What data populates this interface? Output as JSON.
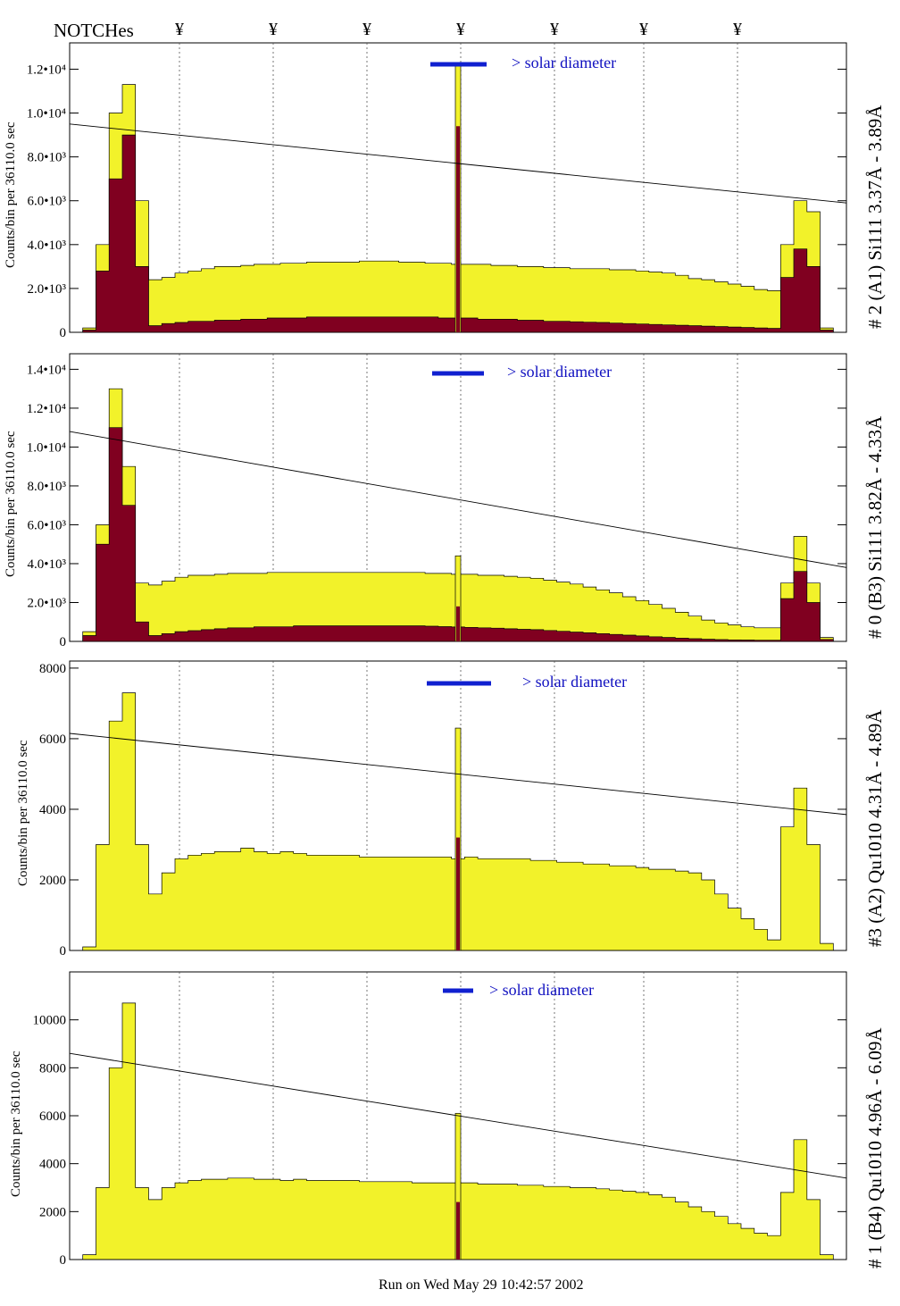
{
  "header": {
    "notches_label": "NOTCHes",
    "notch_symbol": "¥"
  },
  "footer": {
    "run_text": "Run on Wed May 29 10:42:57 2002"
  },
  "colors": {
    "fill_total": "#f2f22a",
    "fill_sub": "#800020",
    "marker": "#1020d0",
    "marker_text": "#1010c0"
  },
  "chart_data": [
    {
      "type": "area",
      "title": "",
      "ylabel": "Counts/bin per  36110.0 sec",
      "right_label": "# 2 (A1) Si111  3.37Å - 3.89Å",
      "solar_text": "> solar diameter",
      "ylim": [
        0,
        13200
      ],
      "yticks": [
        "0",
        "2.0•10³",
        "4.0•10³",
        "6.0•10³",
        "8.0•10³",
        "1.0•10⁴",
        "1.2•10⁴"
      ],
      "ytick_values": [
        0,
        2000,
        4000,
        6000,
        8000,
        10000,
        12000
      ],
      "trend": [
        9500,
        5900
      ],
      "series": [
        {
          "values": [
            0,
            200,
            4000,
            10000,
            11300,
            6000,
            2400,
            2500,
            2700,
            2800,
            2900,
            3000,
            3000,
            3050,
            3100,
            3100,
            3150,
            3150,
            3200,
            3200,
            3200,
            3200,
            3250,
            3250,
            3250,
            3200,
            3200,
            3150,
            3150,
            3100,
            3100,
            3100,
            3050,
            3050,
            3000,
            3000,
            2950,
            2950,
            2900,
            2900,
            2900,
            2850,
            2850,
            2800,
            2750,
            2700,
            2600,
            2450,
            2400,
            2300,
            2200,
            2100,
            1950,
            1900,
            4000,
            6000,
            5500,
            200,
            0
          ]
        },
        {
          "values": [
            0,
            100,
            2800,
            7000,
            9000,
            3000,
            300,
            400,
            450,
            500,
            500,
            550,
            550,
            600,
            600,
            650,
            650,
            650,
            700,
            700,
            700,
            700,
            700,
            700,
            700,
            700,
            700,
            700,
            650,
            650,
            650,
            600,
            600,
            600,
            550,
            550,
            500,
            500,
            480,
            460,
            450,
            420,
            400,
            380,
            360,
            340,
            320,
            300,
            280,
            260,
            240,
            220,
            200,
            180,
            2500,
            3800,
            3000,
            100,
            0
          ]
        }
      ],
      "spike": [
        12200,
        9400
      ]
    },
    {
      "type": "area",
      "title": "",
      "ylabel": "Counts/bin per  36110.0 sec",
      "right_label": "# 0 (B3) Si111  3.82Å - 4.33Å",
      "solar_text": "> solar diameter",
      "ylim": [
        0,
        14800
      ],
      "yticks": [
        "0",
        "2.0•10³",
        "4.0•10³",
        "6.0•10³",
        "8.0•10³",
        "1.0•10⁴",
        "1.2•10⁴",
        "1.4•10⁴"
      ],
      "ytick_values": [
        0,
        2000,
        4000,
        6000,
        8000,
        10000,
        12000,
        14000
      ],
      "trend": [
        10800,
        3800
      ],
      "series": [
        {
          "values": [
            0,
            500,
            6000,
            13000,
            9000,
            3000,
            2900,
            3100,
            3300,
            3400,
            3400,
            3450,
            3500,
            3500,
            3500,
            3550,
            3550,
            3550,
            3550,
            3550,
            3550,
            3550,
            3550,
            3550,
            3550,
            3550,
            3550,
            3500,
            3500,
            3450,
            3450,
            3400,
            3400,
            3350,
            3300,
            3250,
            3150,
            3050,
            2950,
            2800,
            2650,
            2500,
            2300,
            2100,
            1900,
            1700,
            1500,
            1300,
            1100,
            950,
            850,
            750,
            700,
            700,
            3000,
            5400,
            3000,
            200,
            0
          ]
        },
        {
          "values": [
            0,
            300,
            5000,
            11000,
            7000,
            1000,
            300,
            400,
            500,
            550,
            600,
            650,
            700,
            700,
            750,
            750,
            750,
            800,
            800,
            800,
            800,
            800,
            800,
            800,
            800,
            800,
            800,
            780,
            760,
            740,
            720,
            700,
            680,
            650,
            620,
            600,
            560,
            520,
            480,
            440,
            400,
            360,
            320,
            280,
            240,
            200,
            170,
            140,
            110,
            90,
            80,
            70,
            60,
            60,
            2200,
            3600,
            2000,
            100,
            0
          ]
        }
      ],
      "spike": [
        4400,
        1800
      ]
    },
    {
      "type": "area",
      "title": "",
      "ylabel": "Counts/bin per  36110.0 sec",
      "right_label": "#3 (A2) Qu1010  4.31Å - 4.89Å",
      "solar_text": "> solar diameter",
      "ylim": [
        0,
        8200
      ],
      "yticks": [
        "0",
        "2000",
        "4000",
        "6000",
        "8000"
      ],
      "ytick_values": [
        0,
        2000,
        4000,
        6000,
        8000
      ],
      "trend": [
        6150,
        3850
      ],
      "series": [
        {
          "values": [
            0,
            100,
            3000,
            6500,
            7300,
            3000,
            1600,
            2200,
            2600,
            2700,
            2750,
            2800,
            2800,
            2900,
            2800,
            2750,
            2800,
            2750,
            2700,
            2700,
            2700,
            2700,
            2650,
            2650,
            2650,
            2650,
            2650,
            2650,
            2650,
            2600,
            2650,
            2600,
            2600,
            2600,
            2600,
            2550,
            2550,
            2500,
            2500,
            2450,
            2450,
            2400,
            2400,
            2350,
            2300,
            2300,
            2250,
            2200,
            2000,
            1600,
            1200,
            900,
            600,
            300,
            3500,
            4600,
            3000,
            200,
            0
          ]
        },
        {
          "values": [
            0,
            0,
            0,
            0,
            0,
            0,
            0,
            0,
            0,
            0,
            0,
            0,
            0,
            0,
            0,
            0,
            0,
            0,
            0,
            0,
            0,
            0,
            0,
            0,
            0,
            0,
            0,
            0,
            0,
            0,
            0,
            0,
            0,
            0,
            0,
            0,
            0,
            0,
            0,
            0,
            0,
            0,
            0,
            0,
            0,
            0,
            0,
            0,
            0,
            0,
            0,
            0,
            0,
            0,
            0,
            0,
            0,
            0,
            0
          ]
        }
      ],
      "spike": [
        6300,
        3200
      ]
    },
    {
      "type": "area",
      "title": "",
      "ylabel": "Counts/bin per  36110.0 sec",
      "right_label": "# 1 (B4) Qu1010 4.96Å - 6.09Å",
      "solar_text": "> solar diameter",
      "ylim": [
        0,
        12000
      ],
      "yticks": [
        "0",
        "2000",
        "4000",
        "6000",
        "8000",
        "10000"
      ],
      "ytick_values": [
        0,
        2000,
        4000,
        6000,
        8000,
        10000
      ],
      "trend": [
        8600,
        3400
      ],
      "series": [
        {
          "values": [
            0,
            200,
            3000,
            8000,
            10700,
            3000,
            2500,
            3000,
            3200,
            3300,
            3350,
            3350,
            3400,
            3400,
            3350,
            3350,
            3300,
            3350,
            3300,
            3300,
            3300,
            3300,
            3250,
            3250,
            3250,
            3250,
            3200,
            3200,
            3200,
            3200,
            3200,
            3150,
            3150,
            3150,
            3100,
            3100,
            3050,
            3050,
            3000,
            3000,
            2950,
            2900,
            2850,
            2800,
            2700,
            2600,
            2400,
            2200,
            2000,
            1800,
            1500,
            1300,
            1100,
            1000,
            2800,
            5000,
            2500,
            200,
            0
          ]
        },
        {
          "values": [
            0,
            0,
            0,
            0,
            0,
            0,
            0,
            0,
            0,
            0,
            0,
            0,
            0,
            0,
            0,
            0,
            0,
            0,
            0,
            0,
            0,
            0,
            0,
            0,
            0,
            0,
            0,
            0,
            0,
            0,
            0,
            0,
            0,
            0,
            0,
            0,
            0,
            0,
            0,
            0,
            0,
            0,
            0,
            0,
            0,
            0,
            0,
            0,
            0,
            0,
            0,
            0,
            0,
            0,
            0,
            0,
            0,
            0,
            0
          ]
        }
      ],
      "spike": [
        6100,
        2400
      ]
    }
  ]
}
